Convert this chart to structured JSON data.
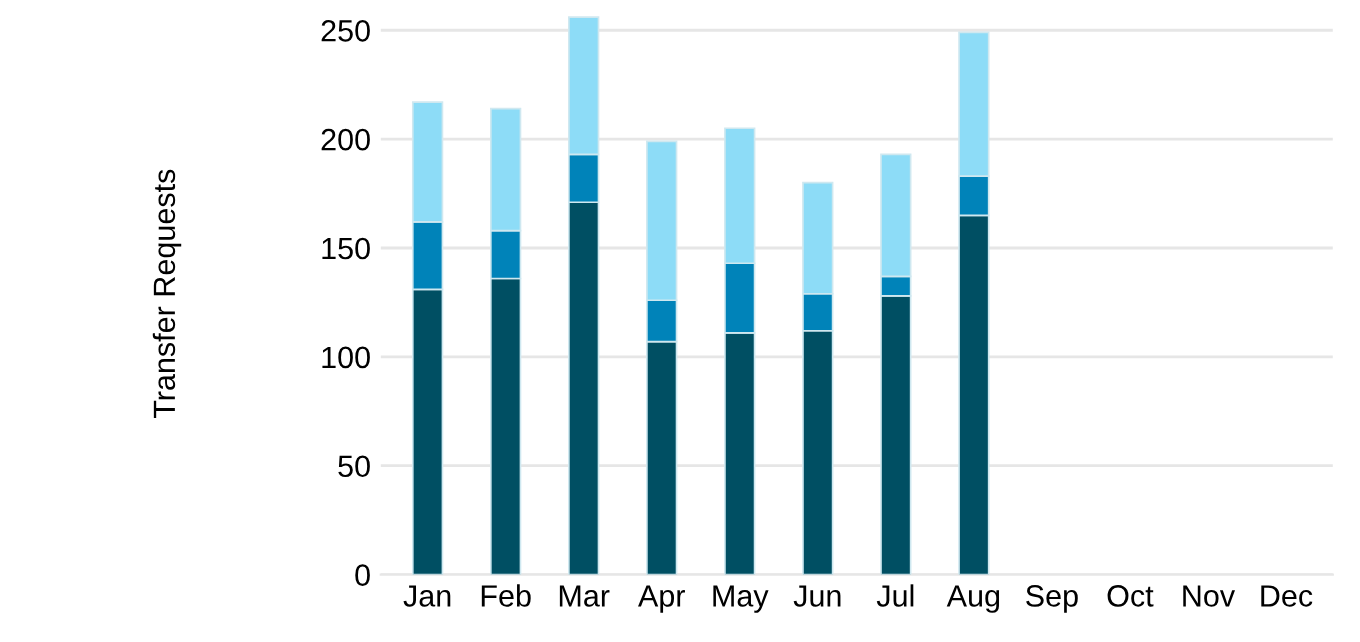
{
  "chart_data": {
    "type": "bar",
    "ylabel": "Transfer Requests",
    "stacked": true,
    "categories": [
      "Jan",
      "Feb",
      "Mar",
      "Apr",
      "May",
      "Jun",
      "Jul",
      "Aug",
      "Sep",
      "Oct",
      "Nov",
      "Dec"
    ],
    "series": [
      {
        "color": "#004f63",
        "values": [
          131,
          136,
          171,
          107,
          111,
          112,
          128,
          165,
          null,
          null,
          null,
          null
        ]
      },
      {
        "color": "#0083b9",
        "values": [
          31,
          22,
          22,
          19,
          32,
          17,
          9,
          18,
          null,
          null,
          null,
          null
        ]
      },
      {
        "color": "#8ddcf7",
        "values": [
          55,
          56,
          63,
          73,
          62,
          51,
          56,
          66,
          null,
          null,
          null,
          null
        ]
      }
    ],
    "ylim": [
      0,
      258
    ],
    "yticks": [
      0,
      50,
      100,
      150,
      200,
      250
    ],
    "grid": "y"
  }
}
